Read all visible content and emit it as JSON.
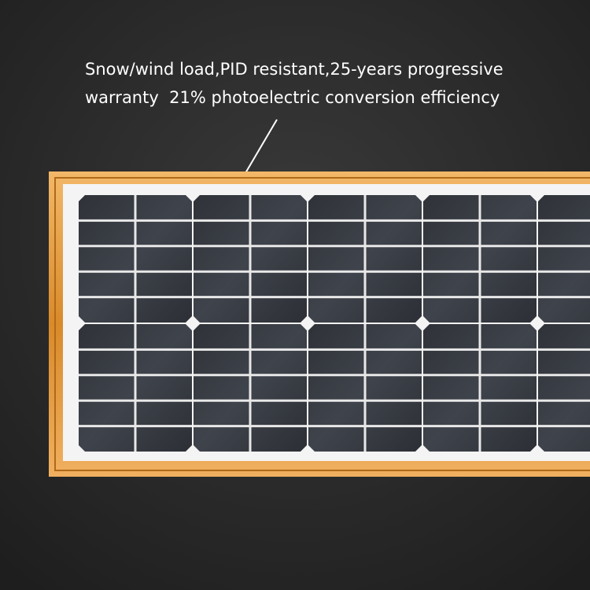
{
  "caption": {
    "line1": "Snow/wind load,PID resistant,25-years progressive",
    "line2": "warranty  21% photoelectric conversion efficiency"
  }
}
